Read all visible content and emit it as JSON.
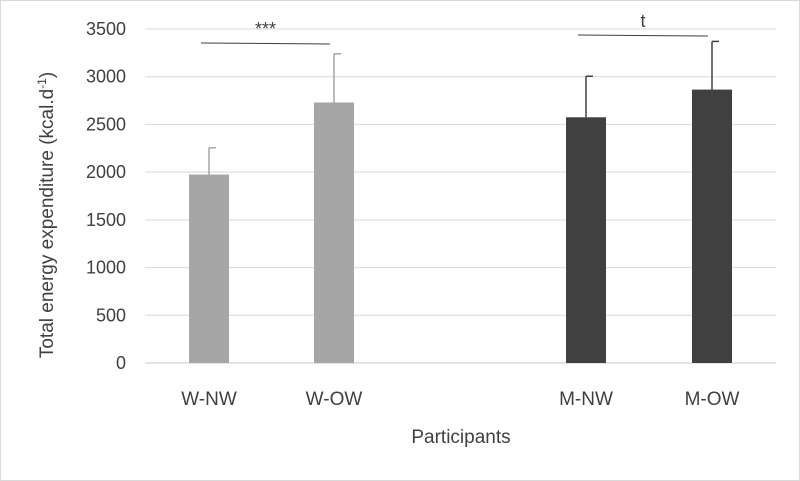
{
  "chart_data": {
    "type": "bar",
    "title": "",
    "xlabel": "Participants",
    "ylabel": "Total energy expenditure (kcal.d",
    "ylabel_superscript": "-1",
    "ylabel_suffix": ")",
    "ylim": [
      0,
      3500
    ],
    "ytick_step": 500,
    "yticks": [
      "0",
      "500",
      "1000",
      "1500",
      "2000",
      "2500",
      "3000",
      "3500"
    ],
    "grid": true,
    "legend": "none",
    "categories": [
      "W-NW",
      "W-OW",
      "M-NW",
      "M-OW"
    ],
    "values": [
      1975,
      2730,
      2575,
      2865
    ],
    "error_upper": [
      280,
      510,
      430,
      505
    ],
    "colors": [
      "#a6a6a6",
      "#a6a6a6",
      "#404040",
      "#404040"
    ],
    "annotations": [
      {
        "label": "***",
        "from": "W-NW",
        "to": "W-OW"
      },
      {
        "label": "t",
        "from": "M-NW",
        "to": "M-OW"
      }
    ]
  }
}
